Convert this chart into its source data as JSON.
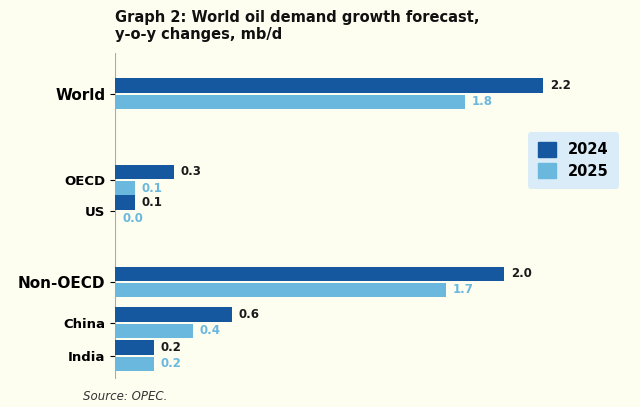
{
  "title_line1": "Graph 2: World oil demand growth forecast,",
  "title_line2": "y-o-y changes, mb/d",
  "categories": [
    "World",
    "OECD",
    "US",
    "Non-OECD",
    "China",
    "India"
  ],
  "values_2024": [
    2.2,
    0.3,
    0.1,
    2.0,
    0.6,
    0.2
  ],
  "values_2025": [
    1.8,
    0.1,
    0.0,
    1.7,
    0.4,
    0.2
  ],
  "color_2024": "#1558a0",
  "color_2025": "#6bb8de",
  "legend_bg": "#d9ecf7",
  "background_color": "#fdfdf0",
  "source_text": "Source: OPEC.",
  "xlim": [
    0,
    2.6
  ],
  "bar_height": 0.28,
  "bar_gap": 0.04,
  "label_color_2024": "#1a1a1a",
  "label_color_2025": "#3399cc",
  "y_positions": [
    5.5,
    3.8,
    3.2,
    1.8,
    1.0,
    0.35
  ],
  "bold_cats": [
    "World",
    "Non-OECD",
    "OECD",
    "US",
    "China",
    "India"
  ]
}
